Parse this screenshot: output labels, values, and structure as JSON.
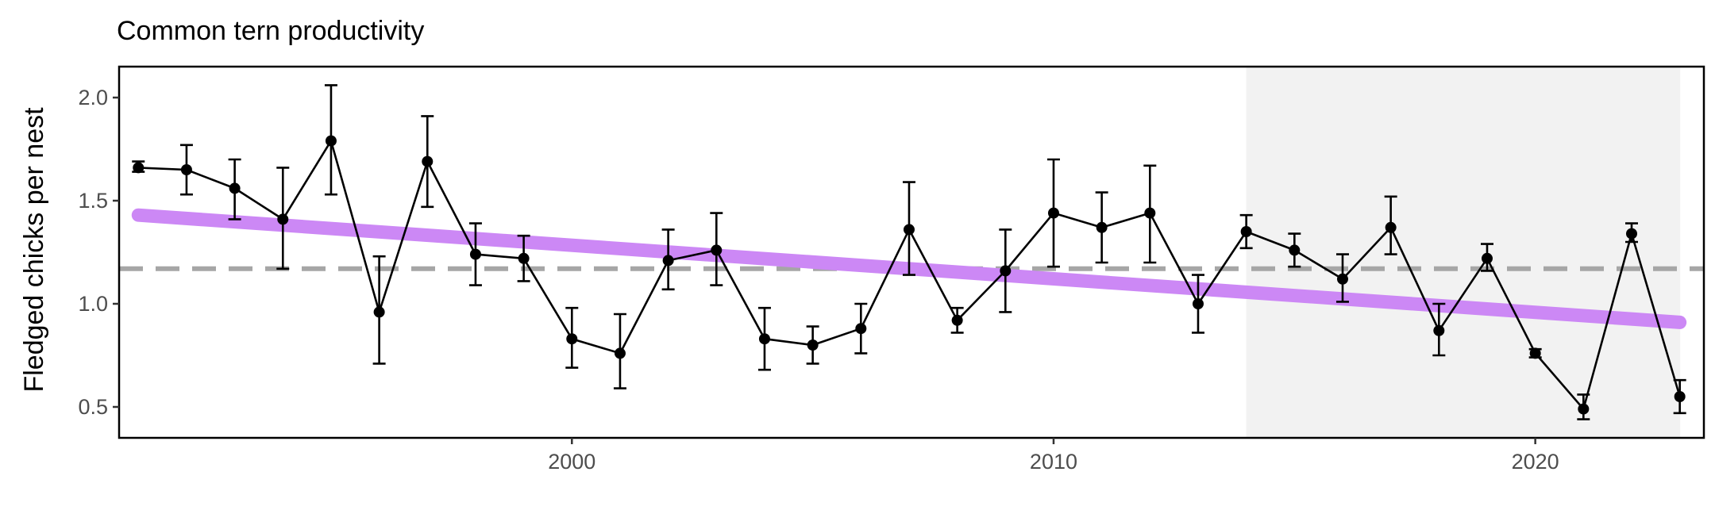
{
  "chart_data": {
    "type": "line",
    "title": "Common tern productivity",
    "xlabel": "",
    "ylabel": "Fledged chicks per nest",
    "xlim": [
      1990.6,
      2023.5
    ],
    "ylim": [
      0.35,
      2.15
    ],
    "x_ticks": [
      2000,
      2010,
      2020
    ],
    "x_tick_labels": [
      "2000",
      "2010",
      "2020"
    ],
    "y_ticks": [
      0.5,
      1.0,
      1.5,
      2.0
    ],
    "y_tick_labels": [
      "0.5",
      "1.0",
      "1.5",
      "2.0"
    ],
    "grid": false,
    "legend": "none",
    "shaded_region": {
      "x_start": 2014,
      "x_end": 2023
    },
    "reference_line": {
      "y": 1.17,
      "style": "dashed",
      "color": "#a6a6a6"
    },
    "trend_line": {
      "x": [
        1991,
        2023
      ],
      "y": [
        1.43,
        0.91
      ],
      "color": "#cc88f5"
    },
    "series": [
      {
        "x": [
          1991,
          1992,
          1993,
          1994,
          1995,
          1996,
          1997,
          1998,
          1999,
          2000,
          2001,
          2002,
          2003,
          2004,
          2005,
          2006,
          2007,
          2008,
          2009,
          2010,
          2011,
          2012,
          2013,
          2014,
          2015,
          2016,
          2017,
          2018,
          2019,
          2020,
          2021,
          2022,
          2023
        ],
        "y": [
          1.66,
          1.65,
          1.56,
          1.41,
          1.79,
          0.96,
          1.69,
          1.24,
          1.22,
          0.83,
          0.76,
          1.21,
          1.26,
          0.83,
          0.8,
          0.88,
          1.36,
          0.92,
          1.16,
          1.44,
          1.37,
          1.44,
          1.0,
          1.35,
          1.26,
          1.12,
          1.37,
          0.87,
          1.22,
          0.76,
          0.49,
          1.34,
          0.55
        ],
        "ymin": [
          1.64,
          1.53,
          1.41,
          1.17,
          1.53,
          0.71,
          1.47,
          1.09,
          1.11,
          0.69,
          0.59,
          1.07,
          1.09,
          0.68,
          0.71,
          0.76,
          1.14,
          0.86,
          0.96,
          1.18,
          1.2,
          1.2,
          0.86,
          1.27,
          1.18,
          1.01,
          1.24,
          0.75,
          1.16,
          0.74,
          0.44,
          1.3,
          0.47
        ],
        "ymax": [
          1.69,
          1.77,
          1.7,
          1.66,
          2.06,
          1.23,
          1.91,
          1.39,
          1.33,
          0.98,
          0.95,
          1.36,
          1.44,
          0.98,
          0.89,
          1.0,
          1.59,
          0.98,
          1.36,
          1.7,
          1.54,
          1.67,
          1.14,
          1.43,
          1.34,
          1.24,
          1.52,
          1.0,
          1.29,
          0.78,
          0.56,
          1.39,
          0.63
        ],
        "color": "#000000"
      }
    ]
  }
}
